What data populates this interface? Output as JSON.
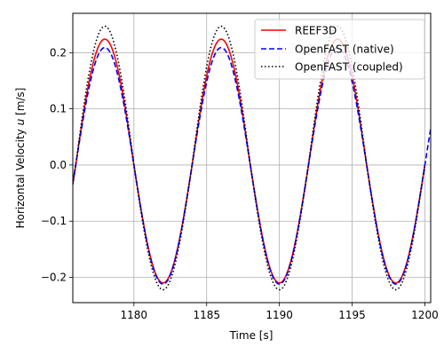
{
  "chart_data": {
    "type": "line",
    "title": "",
    "xlabel": "Time [s]",
    "ylabel_main": "Horizontal Velocity ",
    "ylabel_var": "u",
    "ylabel_unit": " [m/s]",
    "xlim": [
      1175.8,
      1200.4
    ],
    "ylim": [
      -0.245,
      0.27
    ],
    "xticks": [
      1180,
      1185,
      1190,
      1195,
      1200
    ],
    "yticks": [
      -0.2,
      -0.1,
      0.0,
      0.1,
      0.2
    ],
    "xtick_labels": [
      "1180",
      "1185",
      "1190",
      "1195",
      "1200"
    ],
    "ytick_labels": [
      "−0.2",
      "−0.1",
      "0.0",
      "0.1",
      "0.2"
    ],
    "grid": true,
    "legend_position": "top-right",
    "series": [
      {
        "name": "REEF3D",
        "color": "#ff0000",
        "style": "solid",
        "period": 8.0,
        "peak_time": 1178.0,
        "amp_pos": 0.224,
        "amp_neg": 0.21,
        "t_start": 1175.8,
        "t_end": 1200.0
      },
      {
        "name": "OpenFAST (native)",
        "color": "#0000ff",
        "style": "dashed",
        "period": 8.0,
        "peak_time": 1178.0,
        "amp_pos": 0.209,
        "amp_neg": 0.212,
        "t_start": 1175.8,
        "t_end": 1200.4
      },
      {
        "name": "OpenFAST (coupled)",
        "color": "#000000",
        "style": "dotted",
        "period": 8.0,
        "peak_time": 1178.0,
        "amp_pos": 0.247,
        "amp_neg": 0.222,
        "t_start": 1175.8,
        "t_end": 1200.0
      }
    ]
  }
}
